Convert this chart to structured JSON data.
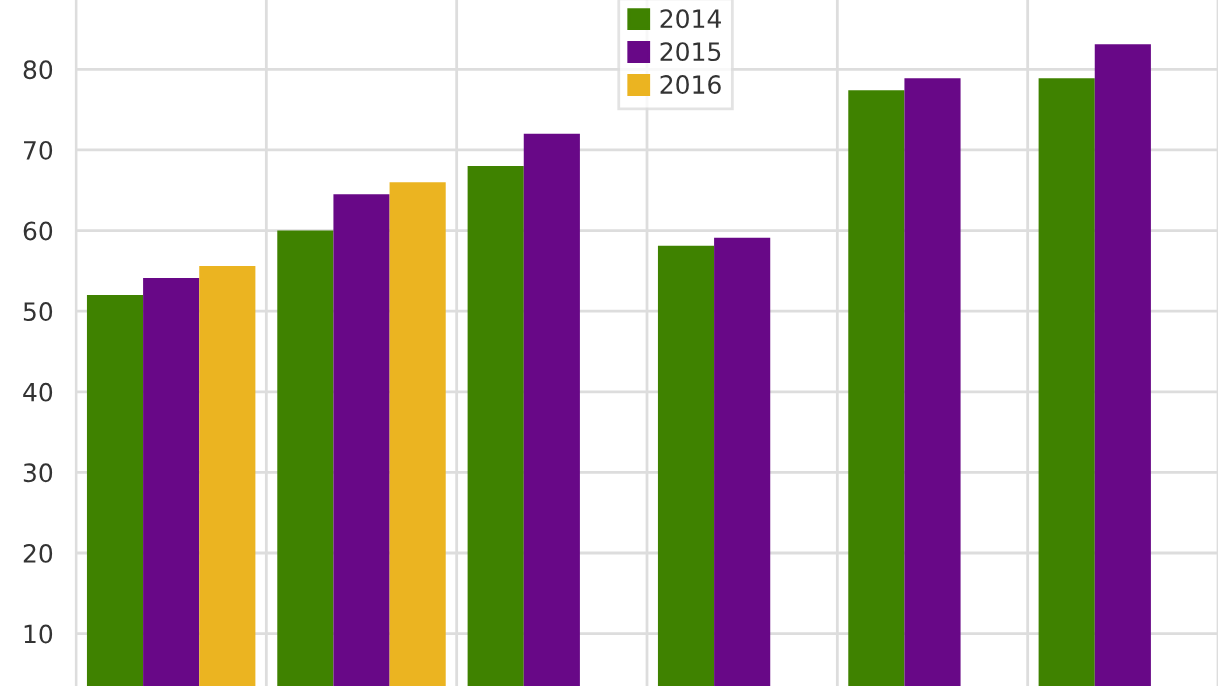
{
  "chart_data": {
    "type": "bar",
    "categories": [
      null,
      null,
      null,
      null,
      null,
      null
    ],
    "series": [
      {
        "name": "2014",
        "color": "#3f8200",
        "values": [
          52.0,
          60.0,
          68.0,
          58.1,
          77.4,
          78.9
        ]
      },
      {
        "name": "2015",
        "color": "#680887",
        "values": [
          54.1,
          64.5,
          72.0,
          59.1,
          78.9,
          83.1
        ]
      },
      {
        "name": "2016",
        "color": "#ebb421",
        "values": [
          55.6,
          66.0,
          null,
          null,
          null,
          null
        ]
      }
    ],
    "ylim": [
      3.5,
      88.6
    ],
    "yticks": [
      10,
      20,
      30,
      40,
      50,
      60,
      70,
      80
    ],
    "grid": true,
    "legend": "top",
    "tick_labels": "y"
  }
}
